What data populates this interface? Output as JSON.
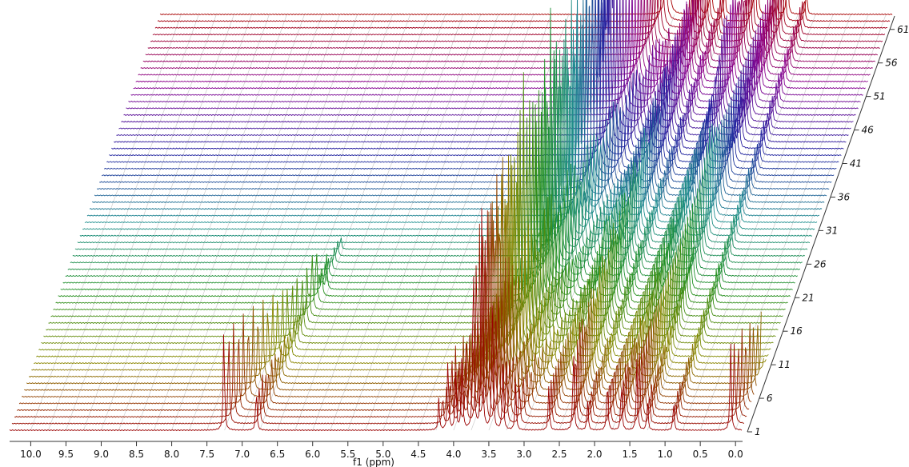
{
  "chart_data": {
    "type": "line",
    "title": "",
    "xlabel": "f1 (ppm)",
    "ylabel": "",
    "xlim": [
      10.3,
      -0.1
    ],
    "x_reversed": true,
    "x_ticks": [
      "10.0",
      "9.5",
      "9.0",
      "8.5",
      "8.0",
      "7.5",
      "7.0",
      "6.5",
      "6.0",
      "5.5",
      "5.0",
      "4.5",
      "4.0",
      "3.5",
      "3.0",
      "2.5",
      "2.0",
      "1.5",
      "1.0",
      "0.5",
      "0.0"
    ],
    "trace_count": 63,
    "trace_ticks": [
      "1",
      "6",
      "11",
      "16",
      "21",
      "26",
      "31",
      "36",
      "41",
      "46",
      "51",
      "56",
      "61"
    ],
    "grid": true,
    "color_scale": [
      "#9a0000",
      "#8a8a00",
      "#1f8f1f",
      "#1f8f8f",
      "#2020a0",
      "#8a0090",
      "#a80000"
    ],
    "peaks": [
      {
        "ppm": 7.26,
        "height": 130,
        "trend": -0.035,
        "end": 22
      },
      {
        "ppm": 6.8,
        "height": 55,
        "trend": -0.01,
        "end": 28
      },
      {
        "ppm": 4.21,
        "height": 40,
        "trend": -0.02,
        "end": 20
      },
      {
        "ppm": 4.08,
        "height": 95,
        "trend": -0.02,
        "end": 24
      },
      {
        "ppm": 3.97,
        "height": 70,
        "trend": -0.015,
        "end": 30
      },
      {
        "ppm": 3.88,
        "height": 110,
        "trend": -0.02,
        "end": 34
      },
      {
        "ppm": 3.72,
        "height": 240,
        "trend": -0.01,
        "end": 63
      },
      {
        "ppm": 3.6,
        "height": 280,
        "trend": -0.008,
        "end": 63
      },
      {
        "ppm": 3.45,
        "height": 190,
        "trend": -0.012,
        "end": 55
      },
      {
        "ppm": 3.3,
        "height": 90,
        "trend": -0.015,
        "end": 40
      },
      {
        "ppm": 3.12,
        "height": 60,
        "trend": -0.02,
        "end": 30
      },
      {
        "ppm": 2.65,
        "height": 55,
        "trend": 0.0,
        "end": 63
      },
      {
        "ppm": 2.3,
        "height": 110,
        "trend": 0.003,
        "end": 63
      },
      {
        "ppm": 2.1,
        "height": 40,
        "trend": 0.003,
        "end": 63
      },
      {
        "ppm": 1.82,
        "height": 70,
        "trend": 0.0,
        "end": 63
      },
      {
        "ppm": 1.62,
        "height": 65,
        "trend": 0.004,
        "end": 63
      },
      {
        "ppm": 1.4,
        "height": 90,
        "trend": 0.0,
        "end": 63
      },
      {
        "ppm": 1.25,
        "height": 40,
        "trend": 0.005,
        "end": 63
      },
      {
        "ppm": 0.88,
        "height": 35,
        "trend": 0.004,
        "end": 63
      },
      {
        "ppm": 0.07,
        "height": 115,
        "trend": -0.02,
        "end": 20
      }
    ]
  }
}
